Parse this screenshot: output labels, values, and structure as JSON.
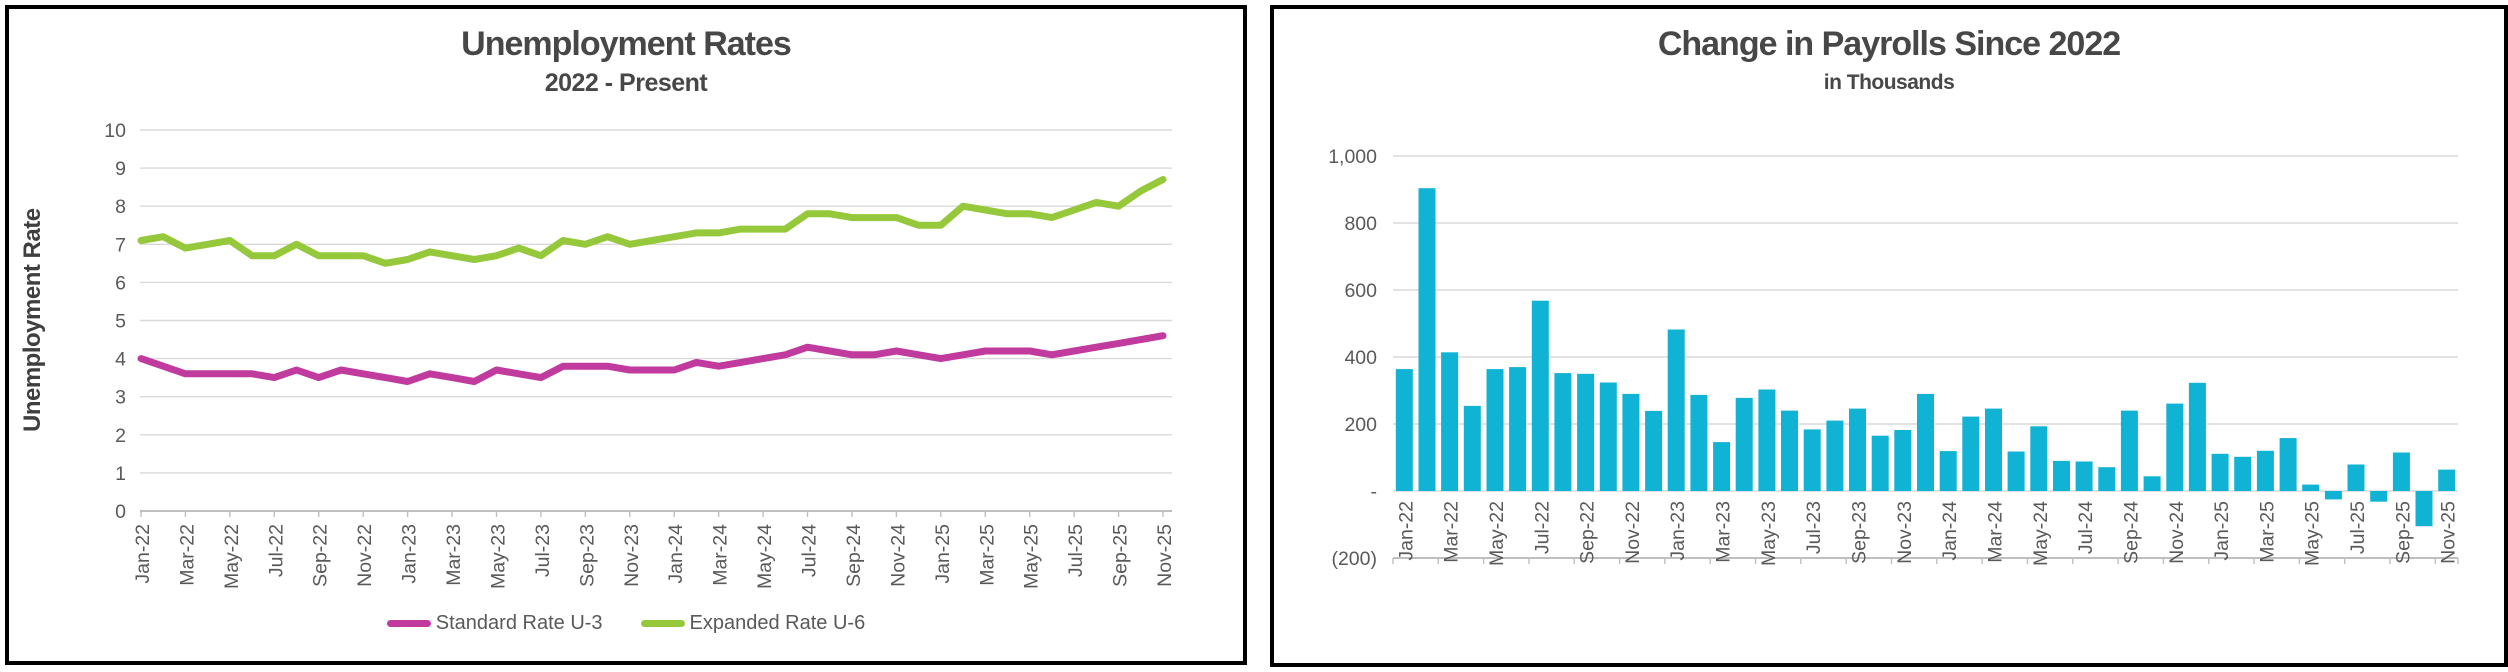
{
  "chart_data": [
    {
      "type": "line",
      "title": "Unemployment Rates",
      "subtitle": "2022 - Present",
      "ylabel": "Unemployment Rate",
      "xlabel": "",
      "ylim": [
        0,
        10
      ],
      "y_ticks": [
        10,
        9,
        8,
        7,
        6,
        5,
        4,
        3,
        2,
        1,
        0
      ],
      "grid": true,
      "legend_position": "bottom",
      "x_tick_every": 2,
      "x": [
        "Jan-22",
        "Feb-22",
        "Mar-22",
        "Apr-22",
        "May-22",
        "Jun-22",
        "Jul-22",
        "Aug-22",
        "Sep-22",
        "Oct-22",
        "Nov-22",
        "Dec-22",
        "Jan-23",
        "Feb-23",
        "Mar-23",
        "Apr-23",
        "May-23",
        "Jun-23",
        "Jul-23",
        "Aug-23",
        "Sep-23",
        "Oct-23",
        "Nov-23",
        "Dec-23",
        "Jan-24",
        "Feb-24",
        "Mar-24",
        "Apr-24",
        "May-24",
        "Jun-24",
        "Jul-24",
        "Aug-24",
        "Sep-24",
        "Oct-24",
        "Nov-24",
        "Dec-24",
        "Jan-25",
        "Feb-25",
        "Mar-25",
        "Apr-25",
        "May-25",
        "Jun-25",
        "Jul-25",
        "Aug-25",
        "Sep-25",
        "Oct-25",
        "Nov-25"
      ],
      "series": [
        {
          "name": "Standard Rate U-3",
          "color": "#C13A9E",
          "values": [
            4.0,
            3.8,
            3.6,
            3.6,
            3.6,
            3.6,
            3.5,
            3.7,
            3.5,
            3.7,
            3.6,
            3.5,
            3.4,
            3.6,
            3.5,
            3.4,
            3.7,
            3.6,
            3.5,
            3.8,
            3.8,
            3.8,
            3.7,
            3.7,
            3.7,
            3.9,
            3.8,
            3.9,
            4.0,
            4.1,
            4.3,
            4.2,
            4.1,
            4.1,
            4.2,
            4.1,
            4.0,
            4.1,
            4.2,
            4.2,
            4.2,
            4.1,
            4.2,
            4.3,
            4.4,
            4.5,
            4.6
          ]
        },
        {
          "name": "Expanded Rate U-6",
          "color": "#96C83C",
          "values": [
            7.1,
            7.2,
            6.9,
            7.0,
            7.1,
            6.7,
            6.7,
            7.0,
            6.7,
            6.7,
            6.7,
            6.5,
            6.6,
            6.8,
            6.7,
            6.6,
            6.7,
            6.9,
            6.7,
            7.1,
            7.0,
            7.2,
            7.0,
            7.1,
            7.2,
            7.3,
            7.3,
            7.4,
            7.4,
            7.4,
            7.8,
            7.8,
            7.7,
            7.7,
            7.7,
            7.5,
            7.5,
            8.0,
            7.9,
            7.8,
            7.8,
            7.7,
            7.9,
            8.1,
            8.0,
            8.4,
            8.7
          ]
        }
      ]
    },
    {
      "type": "bar",
      "title": "Change in Payrolls Since 2022",
      "subtitle": "in Thousands",
      "ylim": [
        -200,
        1000
      ],
      "grid": true,
      "bar_color": "#10B3D4",
      "x_tick_every": 2,
      "y_ticks": [
        {
          "value": 1000,
          "label": "1,000"
        },
        {
          "value": 800,
          "label": "800"
        },
        {
          "value": 600,
          "label": "600"
        },
        {
          "value": 400,
          "label": "400"
        },
        {
          "value": 200,
          "label": "200"
        },
        {
          "value": 0,
          "label": "-"
        },
        {
          "value": -200,
          "label": "(200)"
        }
      ],
      "categories": [
        "Jan-22",
        "Feb-22",
        "Mar-22",
        "Apr-22",
        "May-22",
        "Jun-22",
        "Jul-22",
        "Aug-22",
        "Sep-22",
        "Oct-22",
        "Nov-22",
        "Dec-22",
        "Jan-23",
        "Feb-23",
        "Mar-23",
        "Apr-23",
        "May-23",
        "Jun-23",
        "Jul-23",
        "Aug-23",
        "Sep-23",
        "Oct-23",
        "Nov-23",
        "Dec-23",
        "Jan-24",
        "Feb-24",
        "Mar-24",
        "Apr-24",
        "May-24",
        "Jun-24",
        "Jul-24",
        "Aug-24",
        "Sep-24",
        "Oct-24",
        "Nov-24",
        "Dec-24",
        "Jan-25",
        "Feb-25",
        "Mar-25",
        "Apr-25",
        "May-25",
        "Jun-25",
        "Jul-25",
        "Aug-25",
        "Sep-25",
        "Oct-25",
        "Nov-25"
      ],
      "values": [
        364,
        904,
        414,
        254,
        364,
        370,
        568,
        352,
        350,
        324,
        290,
        239,
        482,
        287,
        146,
        278,
        303,
        240,
        184,
        210,
        246,
        165,
        182,
        290,
        119,
        222,
        246,
        118,
        193,
        90,
        88,
        71,
        240,
        44,
        261,
        323,
        111,
        102,
        120,
        158,
        19,
        -25,
        79,
        -32,
        115,
        -105,
        64
      ]
    }
  ],
  "colors": {
    "gridline": "#D9D9D9",
    "axis_line": "#BFBFBF",
    "tick_text": "#595959",
    "title_text": "#474747",
    "u3_line": "#C13A9E",
    "u6_line": "#96C83C",
    "bar_fill": "#10B3D4",
    "panel_border": "#000000"
  }
}
